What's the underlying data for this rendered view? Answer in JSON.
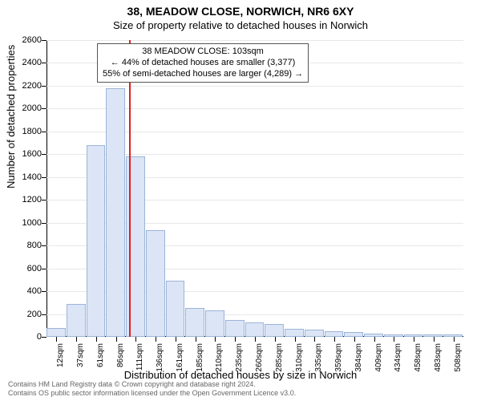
{
  "title_main": "38, MEADOW CLOSE, NORWICH, NR6 6XY",
  "title_sub": "Size of property relative to detached houses in Norwich",
  "ylabel": "Number of detached properties",
  "xlabel": "Distribution of detached houses by size in Norwich",
  "credits_l1": "Contains HM Land Registry data © Crown copyright and database right 2024.",
  "credits_l2": "Contains OS public sector information licensed under the Open Government Licence v3.0.",
  "callout_l1": "38 MEADOW CLOSE: 103sqm",
  "callout_l2": "← 44% of detached houses are smaller (3,377)",
  "callout_l3": "55% of semi-detached houses are larger (4,289) →",
  "chart": {
    "type": "bar",
    "ylim": [
      0,
      2600
    ],
    "ytick_step": 200,
    "bar_fill": "#dbe5f6",
    "bar_border": "#9cb4d8",
    "grid_color": "#e8e8e8",
    "marker_color": "#df2020",
    "marker_x_index": 3.65,
    "x_unit": "sqm",
    "categories": [
      12,
      37,
      61,
      86,
      111,
      136,
      161,
      185,
      210,
      235,
      260,
      285,
      310,
      335,
      359,
      384,
      409,
      434,
      458,
      483,
      508
    ],
    "values": [
      80,
      290,
      1680,
      2180,
      1580,
      935,
      490,
      250,
      230,
      145,
      130,
      110,
      70,
      60,
      50,
      40,
      30,
      20,
      20,
      20,
      20
    ]
  }
}
